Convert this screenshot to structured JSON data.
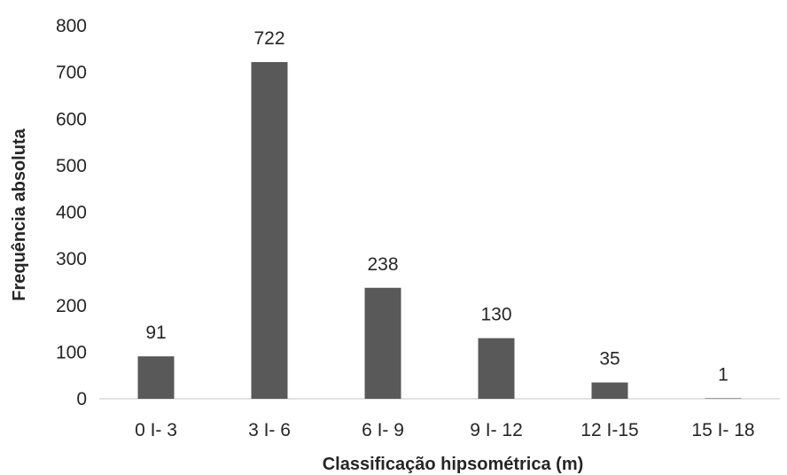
{
  "chart_data": {
    "type": "bar",
    "title": "",
    "xlabel": "Classificação hipsométrica (m)",
    "ylabel": "Frequência absoluta",
    "categories": [
      "0 I- 3",
      "3 I- 6",
      "6 I- 9",
      "9 I- 12",
      "12 I-15",
      "15 I- 18"
    ],
    "values": [
      91,
      722,
      238,
      130,
      35,
      1
    ],
    "ylim": [
      0,
      800
    ],
    "yticks": [
      0,
      100,
      200,
      300,
      400,
      500,
      600,
      700,
      800
    ],
    "grid": false,
    "legend": "none",
    "data_labels": true,
    "bar_color": "#595959",
    "axis_color": "#d9d9d9",
    "text_color": "#262626"
  }
}
